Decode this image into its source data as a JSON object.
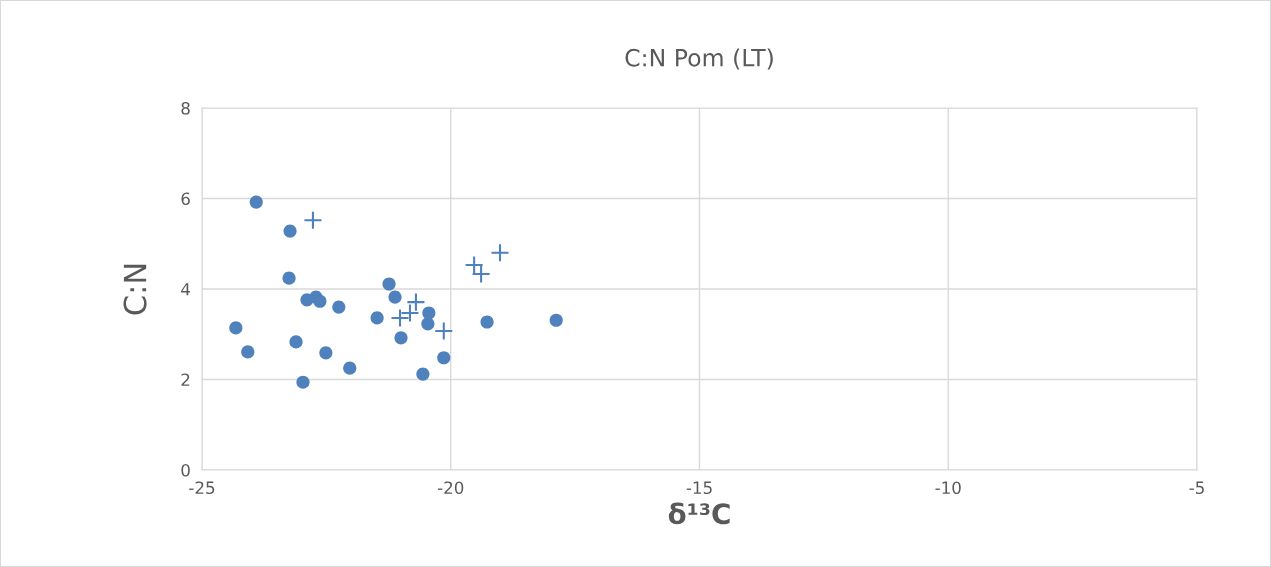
{
  "chart_data": {
    "type": "scatter",
    "title": "C:N Pom (LT)",
    "xlabel": "δ¹³C",
    "ylabel": "C:N",
    "xlim": [
      -25,
      -5
    ],
    "xticks": [
      -25,
      -20,
      -15,
      -10,
      -5
    ],
    "ylim": [
      0,
      8
    ],
    "yticks": [
      0,
      2,
      4,
      6,
      8
    ],
    "grid": true,
    "series": [
      {
        "color": "#4f81bd",
        "marker": "circle",
        "x": [
          -23.91,
          -23.23,
          -23.25,
          -24.32,
          -24.08,
          -22.89,
          -22.71,
          -22.63,
          -22.25,
          -23.11,
          -22.51,
          -22.03,
          -22.97,
          -21.48,
          -21.24,
          -21.12,
          -21.0,
          -20.46,
          -20.44,
          -20.56,
          -20.14,
          -19.27,
          -17.88
        ],
        "values": [
          5.92,
          5.28,
          4.24,
          3.14,
          2.61,
          3.76,
          3.82,
          3.73,
          3.6,
          2.83,
          2.59,
          2.25,
          1.94,
          3.36,
          4.11,
          3.82,
          2.92,
          3.23,
          3.47,
          2.12,
          2.48,
          3.27,
          3.31
        ]
      },
      {
        "color": "#4f81bd",
        "marker": "cross",
        "x": [
          -22.77,
          -19.53,
          -19.39,
          -19.01,
          -20.7,
          -21.02,
          -20.82,
          -20.14
        ],
        "values": [
          5.52,
          4.53,
          4.33,
          4.8,
          3.71,
          3.36,
          3.47,
          3.07
        ]
      }
    ]
  }
}
